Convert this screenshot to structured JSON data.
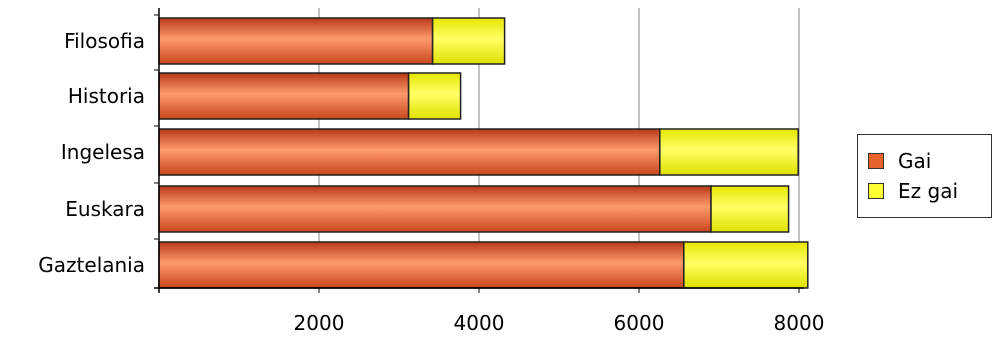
{
  "chart_data": {
    "type": "bar",
    "orientation": "horizontal",
    "stacked": true,
    "categories": [
      "Filosofia",
      "Historia",
      "Ingelesa",
      "Euskara",
      "Gaztelania"
    ],
    "series": [
      {
        "name": "Gai",
        "values": [
          3420,
          3120,
          6260,
          6900,
          6560
        ],
        "color": "#E8622C"
      },
      {
        "name": "Ez gai",
        "values": [
          900,
          650,
          1730,
          970,
          1550
        ],
        "color": "#FFFF33"
      }
    ],
    "xlim": [
      0,
      8000
    ],
    "xticks": [
      "2000",
      "4000",
      "6000",
      "8000"
    ],
    "grid": true,
    "legend_position": "right"
  }
}
